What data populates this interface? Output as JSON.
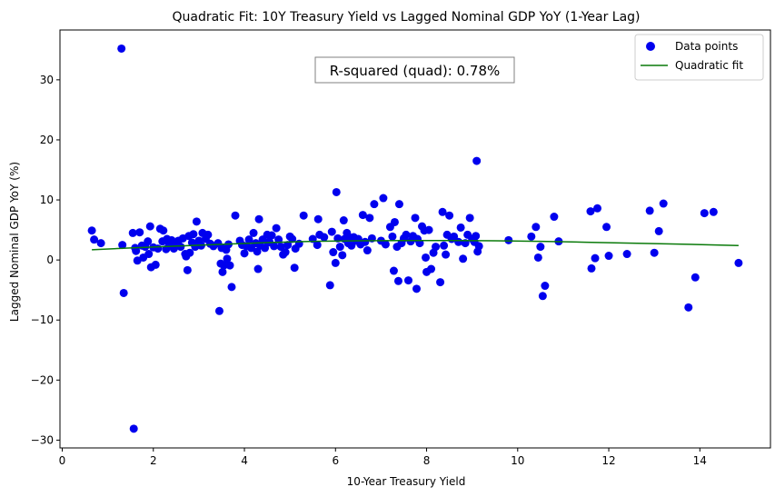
{
  "chart_data": {
    "type": "scatter",
    "title": "Quadratic Fit: 10Y Treasury Yield vs Lagged Nominal GDP YoY (1-Year Lag)",
    "xlabel": "10-Year Treasury Yield",
    "ylabel": "Lagged Nominal GDP YoY (%)",
    "xlim": [
      -0.05,
      15.55
    ],
    "ylim": [
      -31.3,
      38.3
    ],
    "xticks": [
      0,
      2,
      4,
      6,
      8,
      10,
      12,
      14
    ],
    "yticks": [
      -30,
      -20,
      -10,
      0,
      10,
      20,
      30
    ],
    "annotation": "R-squared (quad): 0.78%",
    "legend": {
      "location": "top-right",
      "entries": [
        "Data points",
        "Quadratic fit"
      ]
    },
    "colors": {
      "points": "#0000ee",
      "fit": "#0a7a0a"
    },
    "series": [
      {
        "name": "Data points",
        "kind": "scatter",
        "points": [
          [
            0.65,
            4.9
          ],
          [
            0.7,
            3.4
          ],
          [
            0.85,
            2.8
          ],
          [
            1.3,
            35.2
          ],
          [
            1.32,
            2.5
          ],
          [
            1.35,
            -5.5
          ],
          [
            1.55,
            4.5
          ],
          [
            1.57,
            -28.1
          ],
          [
            1.6,
            2.0
          ],
          [
            1.62,
            1.5
          ],
          [
            1.65,
            -0.1
          ],
          [
            1.7,
            4.6
          ],
          [
            1.75,
            2.4
          ],
          [
            1.78,
            0.4
          ],
          [
            1.82,
            2.2
          ],
          [
            1.88,
            3.1
          ],
          [
            1.9,
            1.0
          ],
          [
            1.93,
            5.6
          ],
          [
            1.95,
            -1.2
          ],
          [
            2.0,
            2.1
          ],
          [
            2.05,
            -0.8
          ],
          [
            2.1,
            1.9
          ],
          [
            2.15,
            5.2
          ],
          [
            2.2,
            3.1
          ],
          [
            2.22,
            4.9
          ],
          [
            2.28,
            1.8
          ],
          [
            2.3,
            3.5
          ],
          [
            2.35,
            2.5
          ],
          [
            2.4,
            3.3
          ],
          [
            2.45,
            1.9
          ],
          [
            2.5,
            2.6
          ],
          [
            2.55,
            3.2
          ],
          [
            2.6,
            2.2
          ],
          [
            2.65,
            3.6
          ],
          [
            2.7,
            1.0
          ],
          [
            2.72,
            0.6
          ],
          [
            2.75,
            -1.7
          ],
          [
            2.78,
            4.0
          ],
          [
            2.8,
            1.2
          ],
          [
            2.85,
            2.9
          ],
          [
            2.88,
            4.3
          ],
          [
            2.92,
            2.2
          ],
          [
            2.95,
            6.4
          ],
          [
            3.0,
            3.2
          ],
          [
            3.05,
            2.4
          ],
          [
            3.08,
            4.5
          ],
          [
            3.15,
            3.5
          ],
          [
            3.2,
            4.2
          ],
          [
            3.25,
            2.7
          ],
          [
            3.32,
            2.3
          ],
          [
            3.42,
            2.8
          ],
          [
            3.45,
            -8.5
          ],
          [
            3.48,
            -0.6
          ],
          [
            3.5,
            2.0
          ],
          [
            3.52,
            -2.0
          ],
          [
            3.55,
            -0.9
          ],
          [
            3.6,
            1.7
          ],
          [
            3.62,
            0.2
          ],
          [
            3.65,
            2.6
          ],
          [
            3.68,
            -0.9
          ],
          [
            3.72,
            -4.5
          ],
          [
            3.8,
            7.4
          ],
          [
            3.9,
            3.2
          ],
          [
            3.95,
            2.5
          ],
          [
            4.0,
            1.1
          ],
          [
            4.05,
            2.3
          ],
          [
            4.1,
            3.4
          ],
          [
            4.15,
            2.0
          ],
          [
            4.2,
            4.5
          ],
          [
            4.25,
            2.8
          ],
          [
            4.28,
            1.4
          ],
          [
            4.3,
            -1.5
          ],
          [
            4.32,
            6.8
          ],
          [
            4.35,
            2.4
          ],
          [
            4.4,
            3.4
          ],
          [
            4.45,
            2.0
          ],
          [
            4.5,
            4.2
          ],
          [
            4.52,
            2.9
          ],
          [
            4.55,
            3.0
          ],
          [
            4.6,
            4.1
          ],
          [
            4.65,
            2.3
          ],
          [
            4.7,
            5.3
          ],
          [
            4.75,
            3.4
          ],
          [
            4.8,
            2.2
          ],
          [
            4.85,
            0.9
          ],
          [
            4.9,
            1.3
          ],
          [
            4.95,
            2.5
          ],
          [
            5.0,
            3.9
          ],
          [
            5.05,
            3.5
          ],
          [
            5.1,
            -1.3
          ],
          [
            5.12,
            1.9
          ],
          [
            5.2,
            2.7
          ],
          [
            5.3,
            7.4
          ],
          [
            5.5,
            3.5
          ],
          [
            5.6,
            2.5
          ],
          [
            5.62,
            6.8
          ],
          [
            5.65,
            4.2
          ],
          [
            5.75,
            3.8
          ],
          [
            5.88,
            -4.2
          ],
          [
            5.92,
            4.7
          ],
          [
            5.95,
            1.3
          ],
          [
            6.0,
            -0.5
          ],
          [
            6.02,
            11.3
          ],
          [
            6.05,
            3.6
          ],
          [
            6.1,
            2.2
          ],
          [
            6.15,
            0.8
          ],
          [
            6.18,
            6.6
          ],
          [
            6.2,
            3.5
          ],
          [
            6.25,
            4.5
          ],
          [
            6.28,
            2.8
          ],
          [
            6.3,
            3.8
          ],
          [
            6.35,
            2.4
          ],
          [
            6.4,
            3.8
          ],
          [
            6.45,
            3.2
          ],
          [
            6.5,
            3.5
          ],
          [
            6.55,
            2.6
          ],
          [
            6.6,
            7.5
          ],
          [
            6.65,
            3.0
          ],
          [
            6.7,
            1.6
          ],
          [
            6.75,
            7.0
          ],
          [
            6.8,
            3.6
          ],
          [
            6.85,
            9.3
          ],
          [
            7.0,
            3.2
          ],
          [
            7.05,
            10.3
          ],
          [
            7.1,
            2.6
          ],
          [
            7.2,
            5.5
          ],
          [
            7.25,
            3.9
          ],
          [
            7.28,
            -1.8
          ],
          [
            7.3,
            6.3
          ],
          [
            7.35,
            2.2
          ],
          [
            7.38,
            -3.5
          ],
          [
            7.4,
            9.3
          ],
          [
            7.45,
            2.8
          ],
          [
            7.5,
            3.6
          ],
          [
            7.55,
            4.2
          ],
          [
            7.6,
            -3.4
          ],
          [
            7.65,
            3.1
          ],
          [
            7.7,
            4.0
          ],
          [
            7.75,
            7.0
          ],
          [
            7.78,
            -4.8
          ],
          [
            7.8,
            3.5
          ],
          [
            7.85,
            2.8
          ],
          [
            7.9,
            5.6
          ],
          [
            7.95,
            4.9
          ],
          [
            7.98,
            0.4
          ],
          [
            8.0,
            -2.0
          ],
          [
            8.05,
            5.0
          ],
          [
            8.1,
            -1.5
          ],
          [
            8.15,
            1.2
          ],
          [
            8.2,
            2.2
          ],
          [
            8.3,
            -3.7
          ],
          [
            8.35,
            8.0
          ],
          [
            8.38,
            2.4
          ],
          [
            8.42,
            0.9
          ],
          [
            8.45,
            4.2
          ],
          [
            8.5,
            7.4
          ],
          [
            8.55,
            3.5
          ],
          [
            8.6,
            3.9
          ],
          [
            8.7,
            3.0
          ],
          [
            8.75,
            5.4
          ],
          [
            8.8,
            0.2
          ],
          [
            8.85,
            2.8
          ],
          [
            8.9,
            4.2
          ],
          [
            8.95,
            7.0
          ],
          [
            9.0,
            3.5
          ],
          [
            9.05,
            3.0
          ],
          [
            9.08,
            4.0
          ],
          [
            9.1,
            16.5
          ],
          [
            9.12,
            1.4
          ],
          [
            9.15,
            2.3
          ],
          [
            9.8,
            3.3
          ],
          [
            10.3,
            3.9
          ],
          [
            10.4,
            5.5
          ],
          [
            10.45,
            0.4
          ],
          [
            10.5,
            2.2
          ],
          [
            10.55,
            -6.0
          ],
          [
            10.6,
            -4.3
          ],
          [
            10.8,
            7.2
          ],
          [
            10.9,
            3.1
          ],
          [
            11.6,
            8.1
          ],
          [
            11.62,
            -1.4
          ],
          [
            11.7,
            0.3
          ],
          [
            11.75,
            8.6
          ],
          [
            11.95,
            5.5
          ],
          [
            12.0,
            0.7
          ],
          [
            12.4,
            1.0
          ],
          [
            12.9,
            8.2
          ],
          [
            13.0,
            1.2
          ],
          [
            13.1,
            4.8
          ],
          [
            13.2,
            9.4
          ],
          [
            13.75,
            -7.9
          ],
          [
            13.9,
            -2.9
          ],
          [
            14.1,
            7.8
          ],
          [
            14.3,
            8.0
          ],
          [
            14.85,
            -0.5
          ]
        ]
      },
      {
        "name": "Quadratic fit",
        "kind": "line",
        "x": [
          0.65,
          1.5,
          2.5,
          3.5,
          4.5,
          5.5,
          6.5,
          7.5,
          8.5,
          9.5,
          10.5,
          11.5,
          12.5,
          13.5,
          14.85
        ],
        "y": [
          1.7,
          2.0,
          2.3,
          2.6,
          2.9,
          3.1,
          3.2,
          3.25,
          3.25,
          3.2,
          3.1,
          2.95,
          2.8,
          2.65,
          2.4
        ]
      }
    ]
  }
}
